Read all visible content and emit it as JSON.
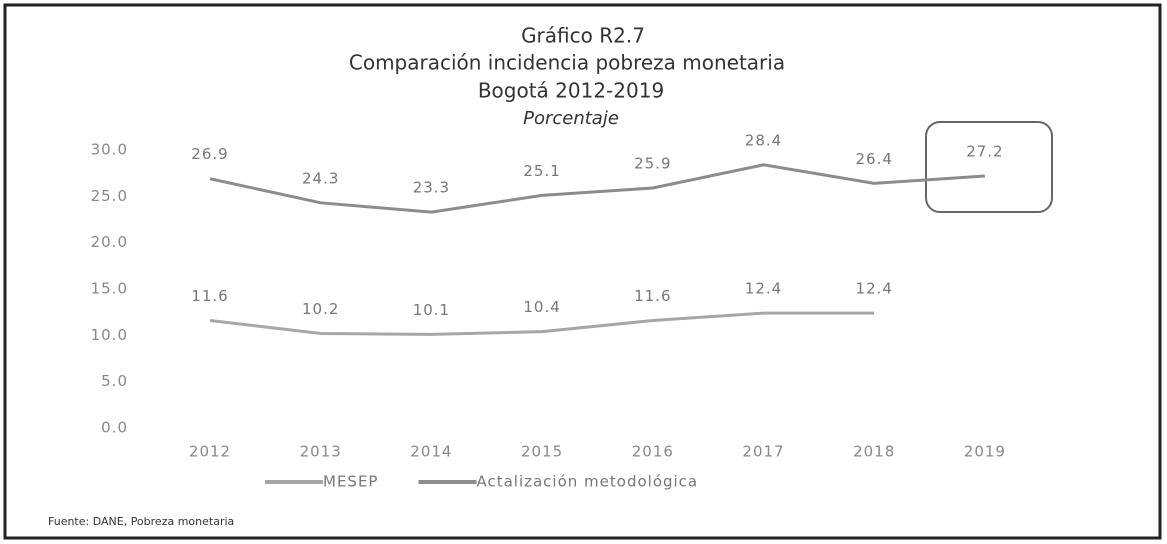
{
  "chart_data": {
    "type": "line",
    "title": "Gráfico R2.7",
    "subtitle_lines": [
      "Comparación incidencia pobreza monetaria",
      "Bogotá 2012-2019"
    ],
    "unit_label": "Porcentaje",
    "categories": [
      "2012",
      "2013",
      "2014",
      "2015",
      "2016",
      "2017",
      "2018",
      "2019"
    ],
    "series": [
      {
        "name": "MESEP",
        "color": "#a6a6a6",
        "values": [
          11.6,
          10.2,
          10.1,
          10.4,
          11.6,
          12.4,
          12.4,
          null
        ]
      },
      {
        "name": "Actalización metodológica",
        "color": "#8c8c8c",
        "values": [
          26.9,
          24.3,
          23.3,
          25.1,
          25.9,
          28.4,
          26.4,
          27.2
        ]
      }
    ],
    "ylim": [
      0,
      30
    ],
    "yticks": [
      {
        "value": 0,
        "label": "0.0"
      },
      {
        "value": 5,
        "label": "5.0"
      },
      {
        "value": 10,
        "label": "10.0"
      },
      {
        "value": 15,
        "label": "15.0"
      },
      {
        "value": 20,
        "label": "20.0"
      },
      {
        "value": 25,
        "label": "25.0"
      },
      {
        "value": 30,
        "label": "30.0"
      }
    ],
    "grid": false,
    "source": "Fuente: DANE, Pobreza monetaria"
  }
}
